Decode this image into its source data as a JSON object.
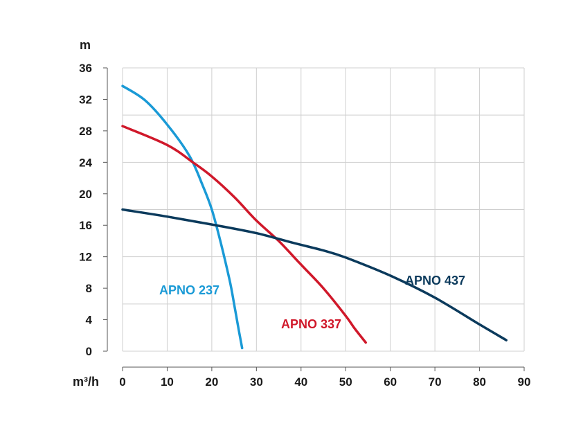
{
  "chart_data": {
    "type": "line",
    "xlabel": "m³/h",
    "ylabel": "m",
    "xlim": [
      0,
      90
    ],
    "ylim": [
      0,
      36
    ],
    "x_ticks": [
      "0",
      "10",
      "20",
      "30",
      "40",
      "50",
      "60",
      "70",
      "80",
      "90"
    ],
    "y_ticks": [
      "0",
      "4",
      "8",
      "12",
      "16",
      "20",
      "24",
      "28",
      "32",
      "36"
    ],
    "grid": true,
    "series": [
      {
        "name": "APNO 237",
        "color": "#1a9ad6",
        "x": [
          0,
          5,
          10,
          15,
          18,
          20,
          22,
          24,
          25,
          26,
          26.8
        ],
        "y": [
          33.7,
          31.9,
          28.8,
          24.8,
          21,
          18,
          13.8,
          9,
          6,
          2.8,
          0.4
        ]
      },
      {
        "name": "APNO 337",
        "color": "#d0182a",
        "x": [
          0,
          10,
          16,
          20,
          25,
          30,
          35,
          40,
          45,
          50,
          52,
          54.5
        ],
        "y": [
          28.6,
          26.2,
          23.9,
          22.2,
          19.6,
          16.6,
          14,
          11,
          8,
          4.5,
          2.9,
          1.1
        ]
      },
      {
        "name": "APNO 437",
        "color": "#0b3a5c",
        "x": [
          0,
          10,
          20,
          30,
          38,
          45,
          50,
          60,
          70,
          80,
          86
        ],
        "y": [
          18,
          17.1,
          16.1,
          15,
          13.8,
          12.8,
          11.9,
          9.6,
          6.8,
          3.4,
          1.4
        ]
      }
    ]
  }
}
